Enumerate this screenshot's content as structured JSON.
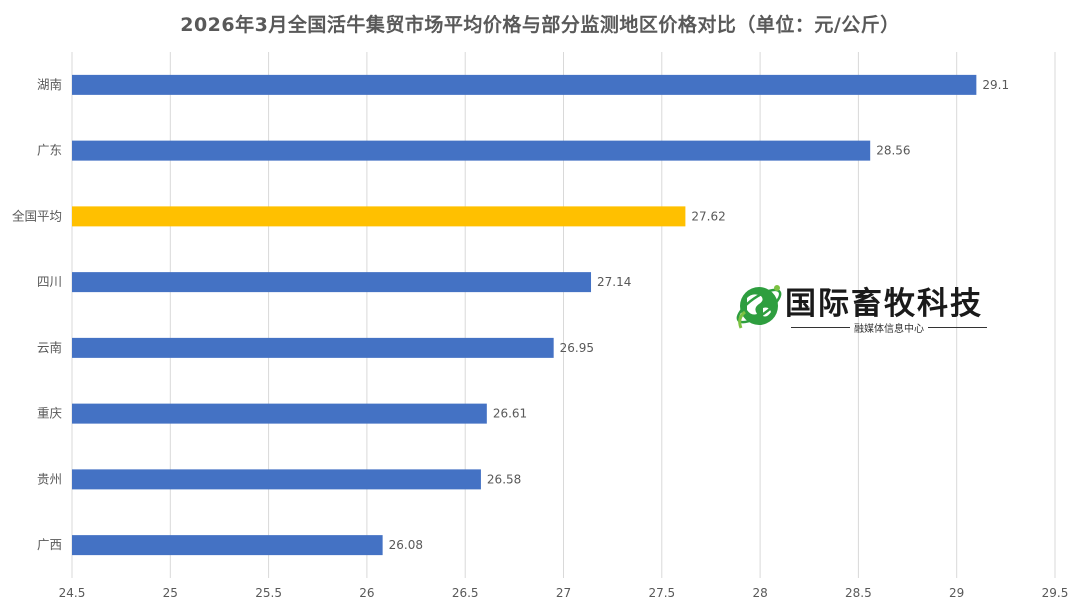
{
  "title": "2026年3月全国活牛集贸市场平均价格与部分监测地区价格对比（单位：元/公斤）",
  "colors": {
    "bar": "#4472C4",
    "highlight_bar": "#FFC000",
    "grid": "#D9D9D9",
    "text": "#595959"
  },
  "logo": {
    "icon": "globe-leaf-icon",
    "name": "国际畜牧科技",
    "subtitle": "融媒体信息中心"
  },
  "chart_data": {
    "type": "bar",
    "orientation": "horizontal",
    "title": "2026年3月全国活牛集贸市场平均价格与部分监测地区价格对比（单位：元/公斤）",
    "categories": [
      "湖南",
      "广东",
      "全国平均",
      "四川",
      "云南",
      "重庆",
      "贵州",
      "广西"
    ],
    "values": [
      29.1,
      28.56,
      27.62,
      27.14,
      26.95,
      26.61,
      26.58,
      26.08
    ],
    "value_labels": [
      "29.1",
      "28.56",
      "27.62",
      "27.14",
      "26.95",
      "26.61",
      "26.58",
      "26.08"
    ],
    "highlight": "全国平均",
    "xlim": [
      24.5,
      29.5
    ],
    "xticks": [
      24.5,
      25,
      25.5,
      26,
      26.5,
      27,
      27.5,
      28,
      28.5,
      29,
      29.5
    ],
    "xtick_labels": [
      "24.5",
      "25",
      "25.5",
      "26",
      "26.5",
      "27",
      "27.5",
      "28",
      "28.5",
      "29",
      "29.5"
    ],
    "grid": true,
    "legend": "none"
  }
}
